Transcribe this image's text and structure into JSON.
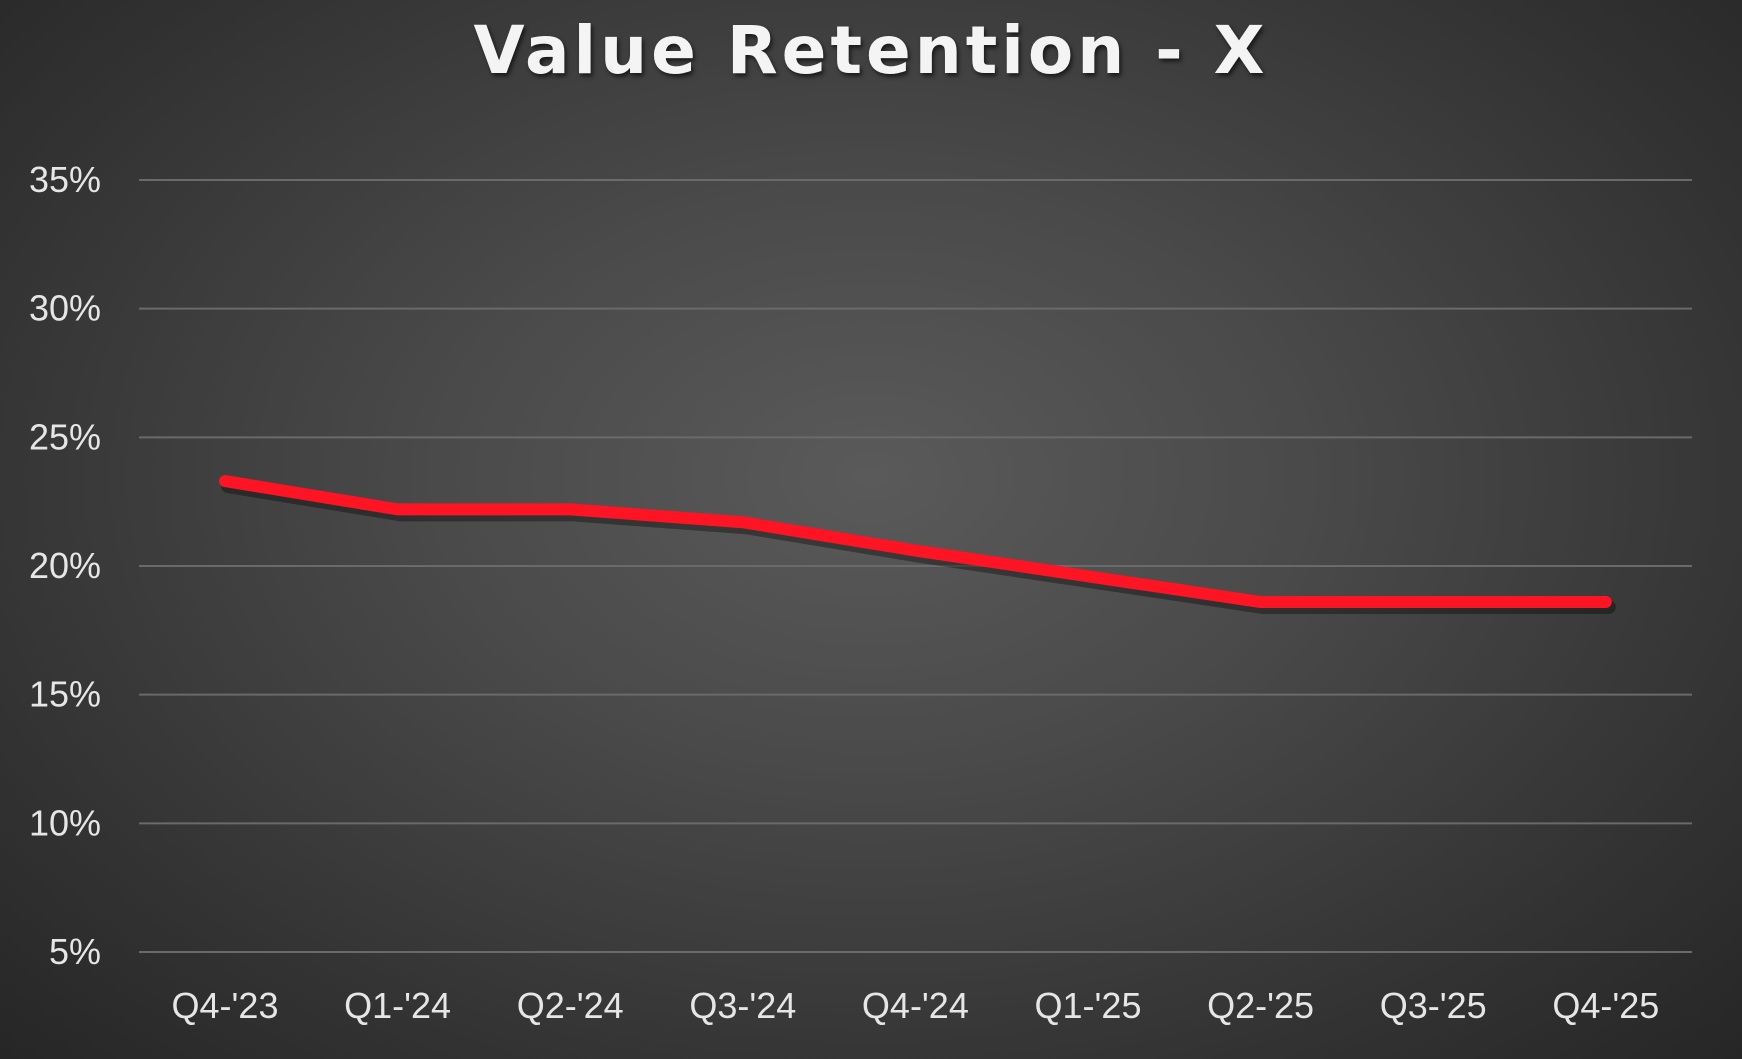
{
  "chart_data": {
    "type": "line",
    "title": "Value Retention - X",
    "xlabel": "",
    "ylabel": "",
    "categories": [
      "Q4-'23",
      "Q1-'24",
      "Q2-'24",
      "Q3-'24",
      "Q4-'24",
      "Q1-'25",
      "Q2-'25",
      "Q3-'25",
      "Q4-'25"
    ],
    "series": [
      {
        "values": [
          23.3,
          22.2,
          22.2,
          21.7,
          20.6,
          19.6,
          18.6,
          18.6,
          18.6
        ],
        "color": "#ff1423"
      }
    ],
    "ylim": [
      5,
      35
    ],
    "yticks": [
      5,
      10,
      15,
      20,
      25,
      30,
      35
    ],
    "ytick_labels": [
      "5%",
      "10%",
      "15%",
      "20%",
      "25%",
      "30%",
      "35%"
    ],
    "grid": true,
    "legend": "none"
  }
}
